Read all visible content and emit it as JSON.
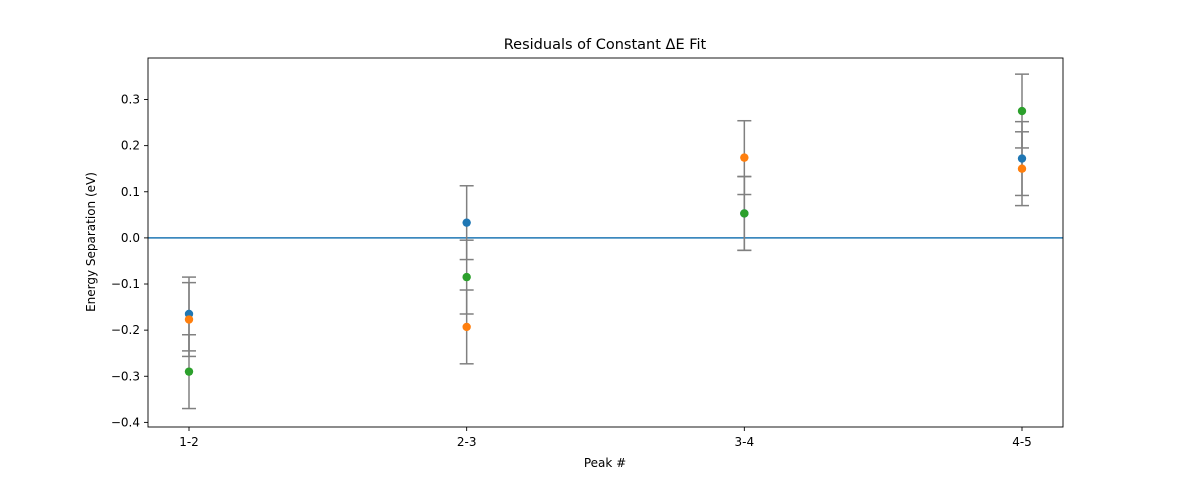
{
  "chart_data": {
    "type": "scatter",
    "title": "Residuals of Constant ΔE Fit",
    "xlabel": "Peak #",
    "ylabel": "Energy Separation (eV)",
    "categories": [
      "1-2",
      "2-3",
      "3-4",
      "4-5"
    ],
    "ylim": [
      -0.41,
      0.39
    ],
    "yticks": [
      -0.4,
      -0.3,
      -0.2,
      -0.1,
      0.0,
      0.1,
      0.2,
      0.3
    ],
    "ytick_labels": [
      "−0.4",
      "−0.3",
      "−0.2",
      "−0.1",
      "0.0",
      "0.1",
      "0.2",
      "0.3"
    ],
    "grid": false,
    "reference_line": {
      "y": 0.0,
      "color": "#1f77b4"
    },
    "errorbar_color": "#808080",
    "series": [
      {
        "color": "#1f77b4",
        "values": [
          -0.165,
          0.033,
          0.053,
          0.172
        ],
        "errors": [
          0.08,
          0.08,
          0.08,
          0.08
        ]
      },
      {
        "color": "#ff7f0e",
        "values": [
          -0.177,
          -0.193,
          0.174,
          0.15
        ],
        "errors": [
          0.08,
          0.08,
          0.08,
          0.08
        ]
      },
      {
        "color": "#2ca02c",
        "values": [
          -0.29,
          -0.085,
          0.053,
          0.275
        ],
        "errors": [
          0.08,
          0.08,
          0.08,
          0.08
        ]
      }
    ]
  }
}
